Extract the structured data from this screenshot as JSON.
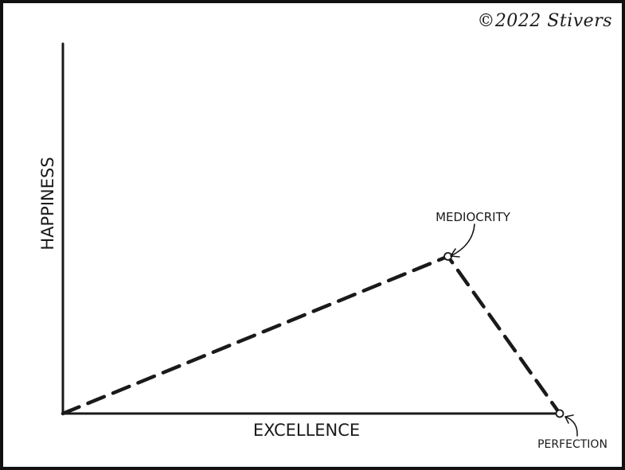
{
  "credit": "©2022 Stivers",
  "chart_data": {
    "type": "line",
    "title": "",
    "xlabel": "EXCELLENCE",
    "ylabel": "HAPPINESS",
    "xlim": [
      0,
      100
    ],
    "ylim": [
      0,
      100
    ],
    "grid": false,
    "ticks": false,
    "series": [
      {
        "style": "dashed",
        "points": [
          {
            "x": 0,
            "y": 0
          },
          {
            "x": 77.5,
            "y": 42.5,
            "label": "MEDIOCRITY"
          },
          {
            "x": 100,
            "y": 0,
            "label": "PERFECTION"
          }
        ]
      }
    ],
    "colors": {
      "ink": "#1a1a1a"
    }
  }
}
